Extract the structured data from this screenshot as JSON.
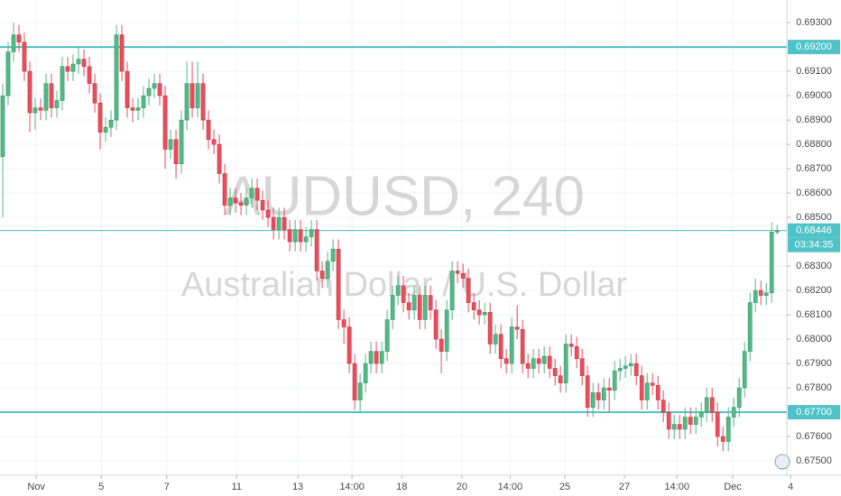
{
  "chart_data": {
    "type": "candlestick",
    "watermark": "AUDUSD, 240",
    "watermark_subtitle": "Australian Dollar / U.S. Dollar",
    "up_color": "#53b987",
    "down_color": "#eb4d5c",
    "line_color": "#4fc3c7",
    "grid": true,
    "xlim": [
      -0.5,
      144.8
    ],
    "ylim": [
      0.67441,
      0.69393
    ],
    "xticks": [
      {
        "value": 6.2,
        "label": "Nov"
      },
      {
        "value": 18.2,
        "label": "5"
      },
      {
        "value": 30.3,
        "label": "7"
      },
      {
        "value": 43.2,
        "label": "11"
      },
      {
        "value": 54.5,
        "label": "13"
      },
      {
        "value": 64.5,
        "label": "14:00"
      },
      {
        "value": 73.7,
        "label": "18"
      },
      {
        "value": 84.8,
        "label": "20"
      },
      {
        "value": 93.7,
        "label": "14:00"
      },
      {
        "value": 103.8,
        "label": "25"
      },
      {
        "value": 114.8,
        "label": "27"
      },
      {
        "value": 124.5,
        "label": "14:00"
      },
      {
        "value": 134.8,
        "label": "Dec"
      },
      {
        "value": 145.5,
        "label": "4"
      }
    ],
    "yticks": [
      {
        "value": 0.693,
        "label": "0.69300"
      },
      {
        "value": 0.691,
        "label": "0.69100"
      },
      {
        "value": 0.69,
        "label": "0.69000"
      },
      {
        "value": 0.689,
        "label": "0.68900"
      },
      {
        "value": 0.688,
        "label": "0.68800"
      },
      {
        "value": 0.687,
        "label": "0.68700"
      },
      {
        "value": 0.686,
        "label": "0.68600"
      },
      {
        "value": 0.685,
        "label": "0.68500"
      },
      {
        "value": 0.683,
        "label": "0.68300"
      },
      {
        "value": 0.682,
        "label": "0.68200"
      },
      {
        "value": 0.681,
        "label": "0.68100"
      },
      {
        "value": 0.68,
        "label": "0.68000"
      },
      {
        "value": 0.679,
        "label": "0.67900"
      },
      {
        "value": 0.678,
        "label": "0.67800"
      },
      {
        "value": 0.676,
        "label": "0.67600"
      },
      {
        "value": 0.675,
        "label": "0.67500"
      }
    ],
    "hlines": [
      {
        "value": 0.692,
        "label": "0.69200"
      },
      {
        "value": 0.677,
        "label": "0.67700"
      }
    ],
    "last_price": {
      "value": 0.68446,
      "label": "0.68446"
    },
    "countdown": "03:34:35",
    "open": [
      0.6875,
      0.69,
      0.6918,
      0.6925,
      0.6922,
      0.691,
      0.6893,
      0.6895,
      0.6894,
      0.6905,
      0.6895,
      0.6898,
      0.6912,
      0.691,
      0.6913,
      0.6915,
      0.6912,
      0.6905,
      0.6897,
      0.6885,
      0.6887,
      0.689,
      0.6925,
      0.691,
      0.6895,
      0.6894,
      0.6895,
      0.69,
      0.6903,
      0.6905,
      0.69,
      0.6878,
      0.6882,
      0.6872,
      0.689,
      0.6905,
      0.6895,
      0.6905,
      0.689,
      0.6882,
      0.688,
      0.6868,
      0.6855,
      0.6858,
      0.6856,
      0.6855,
      0.6858,
      0.6862,
      0.6857,
      0.6853,
      0.685,
      0.6845,
      0.685,
      0.6845,
      0.684,
      0.6845,
      0.684,
      0.6842,
      0.6845,
      0.6828,
      0.6825,
      0.6832,
      0.6837,
      0.6808,
      0.6805,
      0.679,
      0.6775,
      0.6782,
      0.679,
      0.6795,
      0.679,
      0.6795,
      0.6808,
      0.6818,
      0.6822,
      0.6815,
      0.6812,
      0.6818,
      0.6808,
      0.6818,
      0.6812,
      0.68,
      0.6795,
      0.6812,
      0.6828,
      0.6827,
      0.6825,
      0.6815,
      0.6812,
      0.681,
      0.6811,
      0.6798,
      0.6802,
      0.6792,
      0.679,
      0.6805,
      0.6804,
      0.679,
      0.6788,
      0.6792,
      0.679,
      0.6793,
      0.6788,
      0.6785,
      0.6782,
      0.6798,
      0.6797,
      0.6792,
      0.6785,
      0.6772,
      0.6778,
      0.6775,
      0.678,
      0.6779,
      0.6787,
      0.6788,
      0.6789,
      0.679,
      0.6785,
      0.6775,
      0.6782,
      0.6781,
      0.6775,
      0.677,
      0.6763,
      0.6765,
      0.6763,
      0.6768,
      0.6765,
      0.6768,
      0.677,
      0.6776,
      0.677,
      0.676,
      0.6758,
      0.6768,
      0.6772,
      0.678,
      0.6795,
      0.6815,
      0.682,
      0.6818,
      0.6819,
      0.6844
    ],
    "high": [
      0.6905,
      0.6922,
      0.693,
      0.6929,
      0.6926,
      0.6914,
      0.6899,
      0.6899,
      0.6909,
      0.6909,
      0.6902,
      0.6916,
      0.6916,
      0.6917,
      0.692,
      0.6919,
      0.6916,
      0.6909,
      0.6901,
      0.6891,
      0.6894,
      0.6929,
      0.6929,
      0.6914,
      0.6899,
      0.6899,
      0.6904,
      0.6907,
      0.6909,
      0.6909,
      0.6904,
      0.6886,
      0.6886,
      0.6894,
      0.6914,
      0.6914,
      0.6914,
      0.6909,
      0.6894,
      0.6886,
      0.6884,
      0.6872,
      0.6862,
      0.6862,
      0.686,
      0.6862,
      0.6866,
      0.6866,
      0.6861,
      0.6857,
      0.6854,
      0.6854,
      0.6854,
      0.6849,
      0.6849,
      0.6849,
      0.6846,
      0.6849,
      0.6849,
      0.6832,
      0.6836,
      0.6841,
      0.6841,
      0.6812,
      0.6809,
      0.6794,
      0.6786,
      0.6794,
      0.6799,
      0.6799,
      0.6799,
      0.6812,
      0.6822,
      0.6826,
      0.6826,
      0.6819,
      0.6822,
      0.6822,
      0.6822,
      0.6822,
      0.6816,
      0.6804,
      0.6816,
      0.6832,
      0.6832,
      0.6831,
      0.6829,
      0.6819,
      0.6816,
      0.6815,
      0.6815,
      0.6806,
      0.6806,
      0.6796,
      0.6809,
      0.6814,
      0.6808,
      0.6794,
      0.6796,
      0.6796,
      0.6797,
      0.6797,
      0.6792,
      0.6789,
      0.6802,
      0.6802,
      0.6801,
      0.6796,
      0.6789,
      0.6782,
      0.6782,
      0.6784,
      0.6784,
      0.6791,
      0.6792,
      0.6793,
      0.6794,
      0.6794,
      0.6789,
      0.6786,
      0.6786,
      0.6785,
      0.6779,
      0.6774,
      0.6769,
      0.6769,
      0.6772,
      0.6772,
      0.6772,
      0.6774,
      0.678,
      0.678,
      0.6774,
      0.6764,
      0.6772,
      0.6776,
      0.6784,
      0.6799,
      0.6819,
      0.6825,
      0.6824,
      0.6823,
      0.6848,
      0.6847
    ],
    "low": [
      0.685,
      0.6896,
      0.6914,
      0.6918,
      0.6906,
      0.6885,
      0.6886,
      0.689,
      0.689,
      0.6891,
      0.6891,
      0.6894,
      0.6906,
      0.6906,
      0.6909,
      0.6908,
      0.6901,
      0.6893,
      0.6878,
      0.6881,
      0.6883,
      0.6886,
      0.6906,
      0.6891,
      0.6889,
      0.689,
      0.6891,
      0.6896,
      0.6899,
      0.6896,
      0.687,
      0.6874,
      0.6866,
      0.6868,
      0.6886,
      0.6891,
      0.6891,
      0.6886,
      0.6878,
      0.6876,
      0.6864,
      0.6851,
      0.6851,
      0.6852,
      0.6851,
      0.6851,
      0.6854,
      0.6853,
      0.6849,
      0.6846,
      0.6841,
      0.6841,
      0.6841,
      0.6836,
      0.6836,
      0.6836,
      0.6836,
      0.6838,
      0.6824,
      0.6821,
      0.6821,
      0.6828,
      0.6804,
      0.6798,
      0.6786,
      0.6771,
      0.677,
      0.6778,
      0.6786,
      0.6786,
      0.6786,
      0.6791,
      0.6804,
      0.6814,
      0.6811,
      0.6808,
      0.6808,
      0.6804,
      0.6804,
      0.6808,
      0.6796,
      0.6786,
      0.6791,
      0.6808,
      0.6823,
      0.6821,
      0.6811,
      0.6808,
      0.6806,
      0.6806,
      0.6794,
      0.6794,
      0.6788,
      0.6786,
      0.6786,
      0.68,
      0.6786,
      0.6784,
      0.6784,
      0.6786,
      0.6786,
      0.6784,
      0.6781,
      0.6778,
      0.6778,
      0.6793,
      0.6788,
      0.6781,
      0.6768,
      0.6768,
      0.6771,
      0.6771,
      0.677,
      0.6775,
      0.6783,
      0.6784,
      0.6785,
      0.6781,
      0.6771,
      0.6771,
      0.6777,
      0.6771,
      0.6766,
      0.6759,
      0.6759,
      0.6759,
      0.6759,
      0.6761,
      0.6761,
      0.6764,
      0.6766,
      0.6766,
      0.6756,
      0.6754,
      0.6754,
      0.6764,
      0.6768,
      0.6776,
      0.6791,
      0.6811,
      0.6814,
      0.6814,
      0.6815,
      0.6843
    ],
    "close": [
      0.69,
      0.6918,
      0.6925,
      0.6922,
      0.691,
      0.6893,
      0.6895,
      0.6894,
      0.6905,
      0.6895,
      0.6898,
      0.6912,
      0.691,
      0.6913,
      0.6915,
      0.6912,
      0.6905,
      0.6897,
      0.6885,
      0.6887,
      0.689,
      0.6925,
      0.691,
      0.6895,
      0.6894,
      0.6895,
      0.69,
      0.6903,
      0.6905,
      0.69,
      0.6878,
      0.6882,
      0.6872,
      0.689,
      0.6905,
      0.6895,
      0.6905,
      0.689,
      0.6882,
      0.688,
      0.6868,
      0.6855,
      0.6858,
      0.6856,
      0.6855,
      0.6858,
      0.6862,
      0.6857,
      0.6853,
      0.685,
      0.6845,
      0.685,
      0.6845,
      0.684,
      0.6845,
      0.684,
      0.6842,
      0.6845,
      0.6828,
      0.6825,
      0.6832,
      0.6837,
      0.6808,
      0.6805,
      0.679,
      0.6775,
      0.6782,
      0.679,
      0.6795,
      0.679,
      0.6795,
      0.6808,
      0.6818,
      0.6822,
      0.6815,
      0.6812,
      0.6818,
      0.6808,
      0.6818,
      0.6812,
      0.68,
      0.6795,
      0.6812,
      0.6828,
      0.6827,
      0.6825,
      0.6815,
      0.6812,
      0.681,
      0.6811,
      0.6798,
      0.6802,
      0.6792,
      0.679,
      0.6805,
      0.6804,
      0.679,
      0.6788,
      0.6792,
      0.679,
      0.6793,
      0.6788,
      0.6785,
      0.6782,
      0.6798,
      0.6797,
      0.6792,
      0.6785,
      0.6772,
      0.6778,
      0.6775,
      0.678,
      0.6779,
      0.6787,
      0.6788,
      0.6789,
      0.679,
      0.6785,
      0.6775,
      0.6782,
      0.6781,
      0.6775,
      0.677,
      0.6763,
      0.6765,
      0.6763,
      0.6768,
      0.6765,
      0.6768,
      0.677,
      0.6776,
      0.677,
      0.676,
      0.6758,
      0.6768,
      0.6772,
      0.678,
      0.6795,
      0.6815,
      0.682,
      0.6818,
      0.6819,
      0.6844,
      0.68446
    ]
  }
}
